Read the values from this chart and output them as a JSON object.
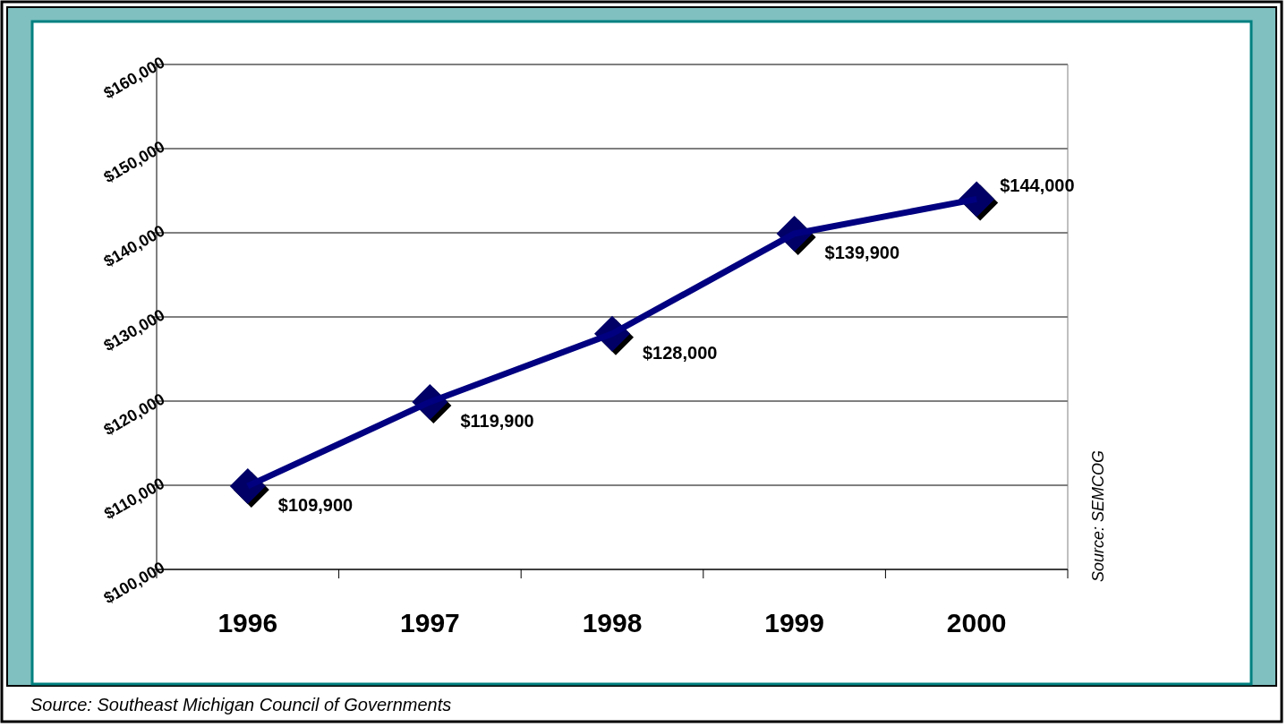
{
  "chart_data": {
    "type": "line",
    "categories": [
      "1996",
      "1997",
      "1998",
      "1999",
      "2000"
    ],
    "series": [
      {
        "color": "#000080",
        "values": [
          109900,
          119900,
          128000,
          139900,
          144000
        ],
        "value_labels": [
          "$109,900",
          "$119,900",
          "$128,000",
          "$139,900",
          "$144,000"
        ]
      }
    ],
    "ylim": [
      100000,
      160000
    ],
    "yticks": [
      {
        "value": 100000,
        "label": "$100,000"
      },
      {
        "value": 110000,
        "label": "$110,000"
      },
      {
        "value": 120000,
        "label": "$120,000"
      },
      {
        "value": 130000,
        "label": "$130,000"
      },
      {
        "value": 140000,
        "label": "$140,000"
      },
      {
        "value": 150000,
        "label": "$150,000"
      },
      {
        "value": 160000,
        "label": "$160,000"
      }
    ],
    "grid": "y",
    "marker": "diamond",
    "line_style": "solid",
    "annotations": [
      "Source: SEMCOG",
      "Source: Southeast Michigan Council of Governments"
    ]
  }
}
